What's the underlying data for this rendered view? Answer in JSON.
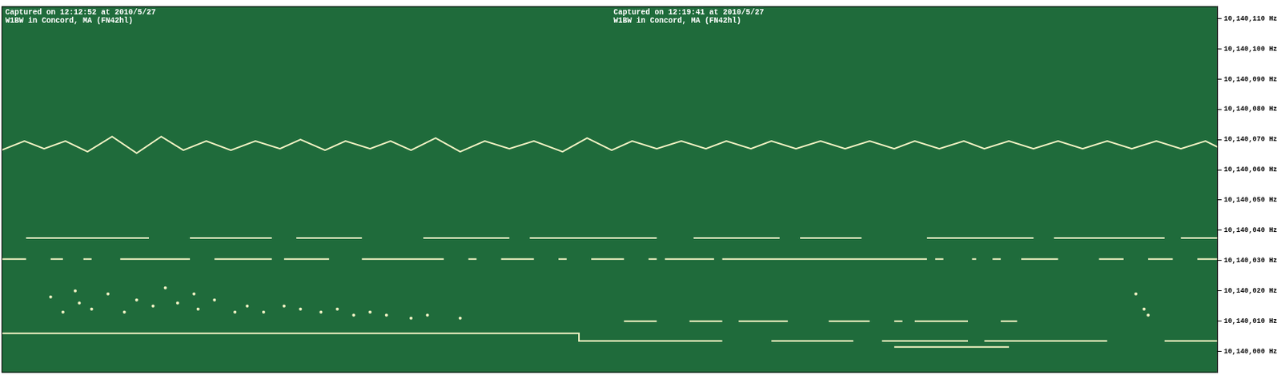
{
  "chart_data": {
    "type": "line",
    "annotations": [
      [
        "Captured on 12:12:52 at 2010/5/27",
        "W1BW in Concord, MA (FN42hl)"
      ],
      [
        "Captured on 12:19:41 at 2010/5/27",
        "W1BW in Concord, MA (FN42hl)"
      ]
    ],
    "xlim": [
      0,
      1485
    ],
    "ylim": [
      10139993,
      10140114
    ],
    "yticks": [
      {
        "value": 10140000,
        "label": "10,140,000 Hz"
      },
      {
        "value": 10140010,
        "label": "10,140,010 Hz"
      },
      {
        "value": 10140020,
        "label": "10,140,020 Hz"
      },
      {
        "value": 10140030,
        "label": "10,140,030 Hz"
      },
      {
        "value": 10140040,
        "label": "10,140,040 Hz"
      },
      {
        "value": 10140050,
        "label": "10,140,050 Hz"
      },
      {
        "value": 10140060,
        "label": "10,140,060 Hz"
      },
      {
        "value": 10140070,
        "label": "10,140,070 Hz"
      },
      {
        "value": 10140080,
        "label": "10,140,080 Hz"
      },
      {
        "value": 10140090,
        "label": "10,140,090 Hz"
      },
      {
        "value": 10140100,
        "label": "10,140,100 Hz"
      },
      {
        "value": 10140110,
        "label": "10,140,110 Hz"
      }
    ],
    "grid": false,
    "tick_labels": "y",
    "series": [
      {
        "type": "line",
        "color": "#f2f2c4",
        "x": [
          0,
          28,
          52,
          78,
          105,
          135,
          165,
          195,
          222,
          250,
          280,
          310,
          340,
          365,
          395,
          420,
          450,
          475,
          500,
          530,
          560,
          590,
          620,
          650,
          685,
          715,
          745,
          770,
          800,
          830,
          860,
          885,
          915,
          940,
          970,
          1000,
          1030,
          1060,
          1090,
          1115,
          1145,
          1175,
          1200,
          1230,
          1260,
          1290,
          1320,
          1350,
          1380,
          1410,
          1440,
          1470,
          1485
        ],
        "values": [
          10140066.5,
          10140069.5,
          10140067,
          10140069.5,
          10140066,
          10140071,
          10140065.5,
          10140071,
          10140066.5,
          10140069.5,
          10140066.5,
          10140069.5,
          10140067,
          10140070,
          10140066.5,
          10140069.5,
          10140067,
          10140069.5,
          10140066.5,
          10140070.5,
          10140066,
          10140069.5,
          10140067,
          10140069.5,
          10140066,
          10140070.5,
          10140066.5,
          10140069.5,
          10140067,
          10140069.5,
          10140067,
          10140069.5,
          10140067,
          10140069.5,
          10140067,
          10140069.5,
          10140067,
          10140069.5,
          10140067,
          10140069.5,
          10140067,
          10140069.5,
          10140067,
          10140069.5,
          10140067,
          10140069.5,
          10140067,
          10140069.5,
          10140067,
          10140069.5,
          10140067,
          10140069.5,
          10140067.5
        ]
      },
      {
        "type": "line",
        "color": "#f2f2c4",
        "x": [
          30,
          180,
          205,
          230,
          330,
          345,
          360,
          440,
          478,
          515,
          620,
          632,
          645,
          800,
          822,
          845,
          950,
          962,
          975,
          1050,
          1090,
          1130,
          1260,
          1272,
          1285,
          1420,
          1430,
          1440,
          1485
        ],
        "values": [
          10140037.5,
          10140037.5,
          null,
          10140037.5,
          10140037.5,
          null,
          10140037.5,
          10140037.5,
          null,
          10140037.5,
          10140037.5,
          null,
          10140037.5,
          10140037.5,
          null,
          10140037.5,
          10140037.5,
          null,
          10140037.5,
          10140037.5,
          null,
          10140037.5,
          10140037.5,
          null,
          10140037.5,
          10140037.5,
          null,
          10140037.5,
          10140037.5
        ]
      },
      {
        "type": "line",
        "color": "#f2f2c4",
        "x": [
          0,
          30,
          45,
          60,
          75,
          88,
          100,
          110,
          128,
          145,
          230,
          245,
          260,
          330,
          338,
          345,
          400,
          420,
          440,
          540,
          555,
          570,
          580,
          595,
          610,
          650,
          665,
          680,
          690,
          705,
          720,
          760,
          775,
          790,
          800,
          805,
          810,
          870,
          875,
          880,
          1130,
          1135,
          1140,
          1150,
          1168,
          1185,
          1190,
          1200,
          1210,
          1220,
          1232,
          1245,
          1290,
          1315,
          1340,
          1370,
          1385,
          1400,
          1430,
          1445,
          1460,
          1485
        ],
        "values": [
          10140030.5,
          10140030.5,
          null,
          10140030.5,
          10140030.5,
          null,
          10140030.5,
          10140030.5,
          null,
          10140030.5,
          10140030.5,
          null,
          10140030.5,
          10140030.5,
          null,
          10140030.5,
          10140030.5,
          null,
          10140030.5,
          10140030.5,
          null,
          10140030.5,
          10140030.5,
          null,
          10140030.5,
          10140030.5,
          null,
          10140030.5,
          10140030.5,
          null,
          10140030.5,
          10140030.5,
          null,
          10140030.5,
          10140030.5,
          null,
          10140030.5,
          10140030.5,
          null,
          10140030.5,
          10140030.5,
          null,
          10140030.5,
          10140030.5,
          null,
          10140030.5,
          10140030.5,
          null,
          10140030.5,
          10140030.5,
          null,
          10140030.5,
          10140030.5,
          null,
          10140030.5,
          10140030.5,
          null,
          10140030.5,
          10140030.5,
          null,
          10140030.5,
          10140030.5
        ]
      },
      {
        "type": "line",
        "color": "#f2f2c4",
        "x": [
          0,
          705,
          705,
          880,
          910,
          940,
          1040,
          1058,
          1075,
          1180,
          1190,
          1200,
          1350,
          1385,
          1420,
          1485
        ],
        "values": [
          10140006,
          10140006,
          10140003.5,
          10140003.5,
          null,
          10140003.5,
          10140003.5,
          null,
          10140003.5,
          10140003.5,
          null,
          10140003.5,
          10140003.5,
          null,
          10140003.5,
          10140003.5
        ]
      },
      {
        "type": "line",
        "color": "#f2f2c4",
        "x": [
          760,
          800,
          820,
          840,
          880,
          890,
          900,
          960,
          985,
          1010,
          1060,
          1075,
          1090,
          1100,
          1108,
          1115,
          1180,
          1200,
          1220,
          1240
        ],
        "values": [
          10140010,
          10140010,
          null,
          10140010,
          10140010,
          null,
          10140010,
          10140010,
          null,
          10140010,
          10140010,
          null,
          10140010,
          10140010,
          null,
          10140010,
          10140010,
          null,
          10140010,
          10140010
        ]
      },
      {
        "type": "line",
        "color": "#f2f2c4",
        "x": [
          1090,
          1230
        ],
        "values": [
          10140001.5,
          10140001.5
        ]
      },
      {
        "type": "scatter",
        "color": "#f2f2c4",
        "marker": "circle",
        "x": [
          60,
          75,
          90,
          95,
          110,
          130,
          150,
          165,
          185,
          200,
          215,
          235,
          240,
          260,
          285,
          300,
          320,
          345,
          365,
          390,
          410,
          430,
          450,
          470,
          500,
          520,
          560,
          1385,
          1395,
          1400
        ],
        "values": [
          10140018,
          10140013,
          10140020,
          10140016,
          10140014,
          10140019,
          10140013,
          10140017,
          10140015,
          10140021,
          10140016,
          10140019,
          10140014,
          10140017,
          10140013,
          10140015,
          10140013,
          10140015,
          10140014,
          10140013,
          10140014,
          10140012,
          10140013,
          10140012,
          10140011,
          10140012,
          10140011,
          10140019,
          10140014,
          10140012
        ]
      }
    ]
  }
}
